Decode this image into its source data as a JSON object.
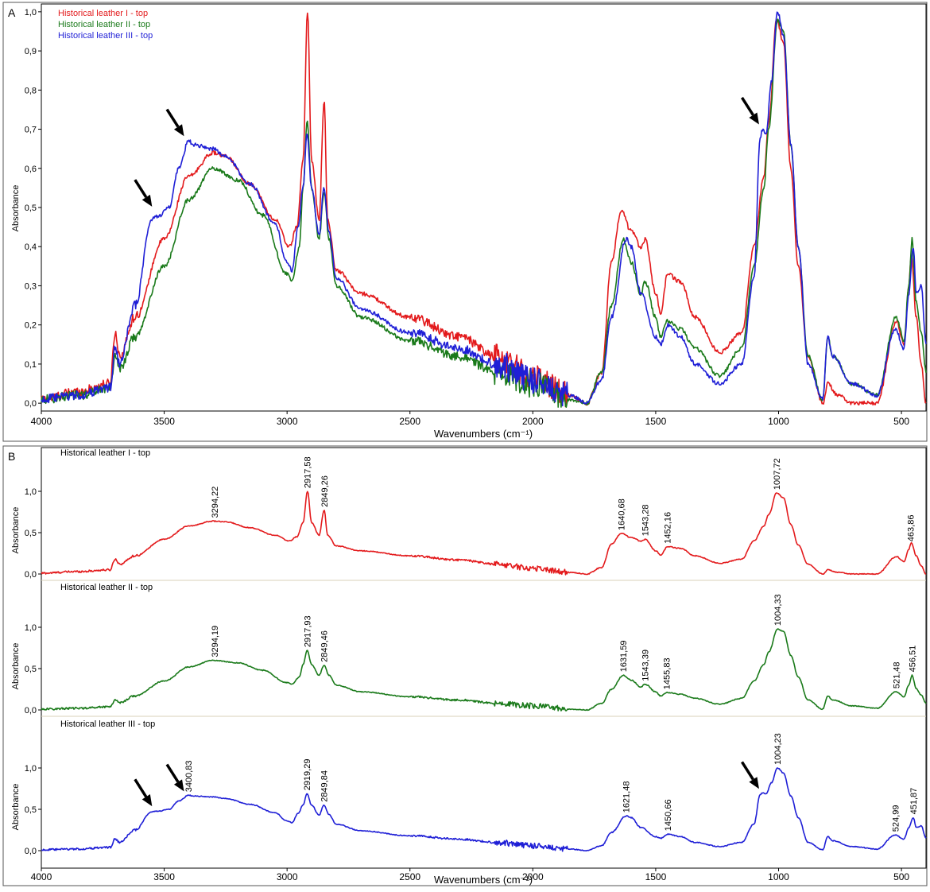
{
  "panels": {
    "a": {
      "label": "A"
    },
    "b": {
      "label": "B"
    }
  },
  "colors": {
    "red": "#e31a1c",
    "green": "#1a7a1a",
    "blue": "#1f1fd6",
    "axis": "#000000"
  },
  "chart_data": [
    {
      "type": "line",
      "panel": "A",
      "xlabel": "Wavenumbers (cm⁻¹)",
      "ylabel": "Absorbance",
      "xlim": [
        4000,
        400
      ],
      "ylim": [
        -0.02,
        1.02
      ],
      "x_ticks": [
        4000,
        3500,
        3000,
        2500,
        2000,
        1500,
        1000,
        500
      ],
      "y_ticks": [
        {
          "v": 0.0,
          "label": "0,0"
        },
        {
          "v": 0.1,
          "label": "0,1"
        },
        {
          "v": 0.2,
          "label": "0,2"
        },
        {
          "v": 0.3,
          "label": "0,3"
        },
        {
          "v": 0.4,
          "label": "0,4"
        },
        {
          "v": 0.5,
          "label": "0,5"
        },
        {
          "v": 0.6,
          "label": "0,6"
        },
        {
          "v": 0.7,
          "label": "0,7"
        },
        {
          "v": 0.8,
          "label": "0,8"
        },
        {
          "v": 0.9,
          "label": "0,9"
        },
        {
          "v": 1.0,
          "label": "1,0"
        }
      ],
      "legend_position": "top-left",
      "series": [
        {
          "name": "Historical leather I - top",
          "color": "#e31a1c",
          "points": [
            [
              4000,
              0.01
            ],
            [
              3850,
              0.03
            ],
            [
              3720,
              0.05
            ],
            [
              3700,
              0.18
            ],
            [
              3680,
              0.12
            ],
            [
              3620,
              0.22
            ],
            [
              3500,
              0.42
            ],
            [
              3400,
              0.58
            ],
            [
              3300,
              0.64
            ],
            [
              3250,
              0.63
            ],
            [
              3150,
              0.56
            ],
            [
              3050,
              0.47
            ],
            [
              2990,
              0.4
            ],
            [
              2960,
              0.45
            ],
            [
              2935,
              0.62
            ],
            [
              2917,
              1.0
            ],
            [
              2900,
              0.62
            ],
            [
              2870,
              0.47
            ],
            [
              2849,
              0.77
            ],
            [
              2835,
              0.47
            ],
            [
              2800,
              0.34
            ],
            [
              2700,
              0.28
            ],
            [
              2500,
              0.22
            ],
            [
              2300,
              0.17
            ],
            [
              2150,
              0.12
            ],
            [
              2000,
              0.07
            ],
            [
              1850,
              0.02
            ],
            [
              1780,
              0.0
            ],
            [
              1720,
              0.08
            ],
            [
              1680,
              0.36
            ],
            [
              1640,
              0.49
            ],
            [
              1600,
              0.44
            ],
            [
              1560,
              0.4
            ],
            [
              1543,
              0.42
            ],
            [
              1500,
              0.28
            ],
            [
              1480,
              0.23
            ],
            [
              1452,
              0.33
            ],
            [
              1400,
              0.31
            ],
            [
              1340,
              0.22
            ],
            [
              1240,
              0.13
            ],
            [
              1150,
              0.18
            ],
            [
              1100,
              0.4
            ],
            [
              1060,
              0.58
            ],
            [
              1040,
              0.72
            ],
            [
              1008,
              0.98
            ],
            [
              980,
              0.92
            ],
            [
              950,
              0.6
            ],
            [
              920,
              0.35
            ],
            [
              880,
              0.12
            ],
            [
              820,
              0.0
            ],
            [
              800,
              0.05
            ],
            [
              760,
              0.02
            ],
            [
              700,
              0.0
            ],
            [
              600,
              0.0
            ],
            [
              520,
              0.21
            ],
            [
              490,
              0.15
            ],
            [
              470,
              0.3
            ],
            [
              460,
              0.38
            ],
            [
              440,
              0.22
            ],
            [
              420,
              0.1
            ],
            [
              400,
              0.0
            ]
          ]
        },
        {
          "name": "Historical leather II - top",
          "color": "#1a7a1a",
          "points": [
            [
              4000,
              0.01
            ],
            [
              3850,
              0.02
            ],
            [
              3720,
              0.04
            ],
            [
              3700,
              0.12
            ],
            [
              3680,
              0.09
            ],
            [
              3620,
              0.17
            ],
            [
              3500,
              0.35
            ],
            [
              3400,
              0.52
            ],
            [
              3300,
              0.6
            ],
            [
              3200,
              0.57
            ],
            [
              3100,
              0.48
            ],
            [
              3000,
              0.33
            ],
            [
              2980,
              0.31
            ],
            [
              2950,
              0.4
            ],
            [
              2935,
              0.55
            ],
            [
              2918,
              0.72
            ],
            [
              2900,
              0.55
            ],
            [
              2870,
              0.42
            ],
            [
              2849,
              0.54
            ],
            [
              2830,
              0.42
            ],
            [
              2800,
              0.3
            ],
            [
              2700,
              0.22
            ],
            [
              2500,
              0.16
            ],
            [
              2300,
              0.12
            ],
            [
              2150,
              0.08
            ],
            [
              2000,
              0.05
            ],
            [
              1850,
              0.01
            ],
            [
              1780,
              0.0
            ],
            [
              1720,
              0.08
            ],
            [
              1680,
              0.25
            ],
            [
              1632,
              0.42
            ],
            [
              1600,
              0.36
            ],
            [
              1560,
              0.28
            ],
            [
              1543,
              0.31
            ],
            [
              1500,
              0.22
            ],
            [
              1480,
              0.17
            ],
            [
              1456,
              0.21
            ],
            [
              1400,
              0.19
            ],
            [
              1340,
              0.14
            ],
            [
              1240,
              0.07
            ],
            [
              1150,
              0.14
            ],
            [
              1100,
              0.35
            ],
            [
              1060,
              0.55
            ],
            [
              1040,
              0.7
            ],
            [
              1004,
              0.98
            ],
            [
              980,
              0.95
            ],
            [
              950,
              0.66
            ],
            [
              920,
              0.4
            ],
            [
              880,
              0.12
            ],
            [
              820,
              0.01
            ],
            [
              800,
              0.17
            ],
            [
              780,
              0.12
            ],
            [
              700,
              0.05
            ],
            [
              600,
              0.02
            ],
            [
              521,
              0.22
            ],
            [
              490,
              0.16
            ],
            [
              470,
              0.3
            ],
            [
              457,
              0.42
            ],
            [
              440,
              0.26
            ],
            [
              420,
              0.18
            ],
            [
              400,
              0.08
            ]
          ]
        },
        {
          "name": "Historical leather III - top",
          "color": "#1f1fd6",
          "points": [
            [
              4000,
              0.01
            ],
            [
              3850,
              0.02
            ],
            [
              3720,
              0.04
            ],
            [
              3700,
              0.14
            ],
            [
              3680,
              0.1
            ],
            [
              3620,
              0.25
            ],
            [
              3550,
              0.47
            ],
            [
              3520,
              0.48
            ],
            [
              3480,
              0.5
            ],
            [
              3440,
              0.6
            ],
            [
              3401,
              0.67
            ],
            [
              3380,
              0.66
            ],
            [
              3300,
              0.65
            ],
            [
              3250,
              0.63
            ],
            [
              3150,
              0.56
            ],
            [
              3050,
              0.46
            ],
            [
              3000,
              0.36
            ],
            [
              2980,
              0.34
            ],
            [
              2955,
              0.45
            ],
            [
              2935,
              0.55
            ],
            [
              2919,
              0.69
            ],
            [
              2900,
              0.55
            ],
            [
              2870,
              0.43
            ],
            [
              2850,
              0.55
            ],
            [
              2830,
              0.44
            ],
            [
              2800,
              0.32
            ],
            [
              2700,
              0.24
            ],
            [
              2500,
              0.18
            ],
            [
              2300,
              0.14
            ],
            [
              2150,
              0.1
            ],
            [
              2000,
              0.06
            ],
            [
              1850,
              0.02
            ],
            [
              1780,
              0.0
            ],
            [
              1720,
              0.06
            ],
            [
              1680,
              0.22
            ],
            [
              1621,
              0.42
            ],
            [
              1600,
              0.4
            ],
            [
              1560,
              0.28
            ],
            [
              1500,
              0.17
            ],
            [
              1480,
              0.15
            ],
            [
              1451,
              0.2
            ],
            [
              1400,
              0.17
            ],
            [
              1340,
              0.1
            ],
            [
              1240,
              0.05
            ],
            [
              1150,
              0.1
            ],
            [
              1100,
              0.32
            ],
            [
              1075,
              0.68
            ],
            [
              1065,
              0.7
            ],
            [
              1050,
              0.69
            ],
            [
              1030,
              0.82
            ],
            [
              1004,
              1.0
            ],
            [
              980,
              0.94
            ],
            [
              950,
              0.66
            ],
            [
              920,
              0.4
            ],
            [
              880,
              0.1
            ],
            [
              820,
              0.01
            ],
            [
              800,
              0.17
            ],
            [
              780,
              0.12
            ],
            [
              700,
              0.05
            ],
            [
              600,
              0.02
            ],
            [
              525,
              0.19
            ],
            [
              490,
              0.14
            ],
            [
              470,
              0.28
            ],
            [
              452,
              0.4
            ],
            [
              440,
              0.28
            ],
            [
              420,
              0.3
            ],
            [
              400,
              0.15
            ]
          ]
        }
      ],
      "arrows_at": [
        [
          3530,
          0.49
        ],
        [
          3400,
          0.67
        ],
        [
          1060,
          0.7
        ]
      ]
    },
    {
      "type": "line",
      "panel": "B",
      "stacked": true,
      "xlabel": "Wavenumbers (cm⁻¹)",
      "ylabel": "Absorbance",
      "xlim": [
        4000,
        400
      ],
      "x_ticks": [
        4000,
        3500,
        3000,
        2500,
        2000,
        1500,
        1000,
        500
      ],
      "y_ticks": [
        {
          "v": 0.0,
          "label": "0,0"
        },
        {
          "v": 0.5,
          "label": "0,5"
        },
        {
          "v": 1.0,
          "label": "1,0"
        }
      ],
      "series": [
        {
          "name": "Historical leather I - top",
          "color": "#e31a1c",
          "ref": 0,
          "peaks": [
            [
              3294.22,
              "3294,22"
            ],
            [
              2917.58,
              "2917,58"
            ],
            [
              2849.26,
              "2849,26"
            ],
            [
              1640.68,
              "1640,68"
            ],
            [
              1543.28,
              "1543,28"
            ],
            [
              1452.16,
              "1452,16"
            ],
            [
              1007.72,
              "1007,72"
            ],
            [
              463.86,
              "463,86"
            ]
          ]
        },
        {
          "name": "Historical leather II - top",
          "color": "#1a7a1a",
          "ref": 1,
          "peaks": [
            [
              3294.19,
              "3294,19"
            ],
            [
              2917.93,
              "2917,93"
            ],
            [
              2849.46,
              "2849,46"
            ],
            [
              1631.59,
              "1631,59"
            ],
            [
              1543.39,
              "1543,39"
            ],
            [
              1455.83,
              "1455,83"
            ],
            [
              1004.33,
              "1004,33"
            ],
            [
              521.48,
              "521,48"
            ],
            [
              456.51,
              "456,51"
            ]
          ]
        },
        {
          "name": "Historical leather III - top",
          "color": "#1f1fd6",
          "ref": 2,
          "peaks": [
            [
              3400.83,
              "3400,83"
            ],
            [
              2919.29,
              "2919,29"
            ],
            [
              2849.84,
              "2849,84"
            ],
            [
              1621.48,
              "1621,48"
            ],
            [
              1450.66,
              "1450,66"
            ],
            [
              1004.23,
              "1004,23"
            ],
            [
              524.99,
              "524,99"
            ],
            [
              451.87,
              "451,87"
            ]
          ]
        }
      ],
      "arrows_at": [
        [
          2,
          3530,
          0.48
        ],
        [
          2,
          3400,
          0.66
        ],
        [
          2,
          1060,
          0.69
        ]
      ]
    }
  ]
}
